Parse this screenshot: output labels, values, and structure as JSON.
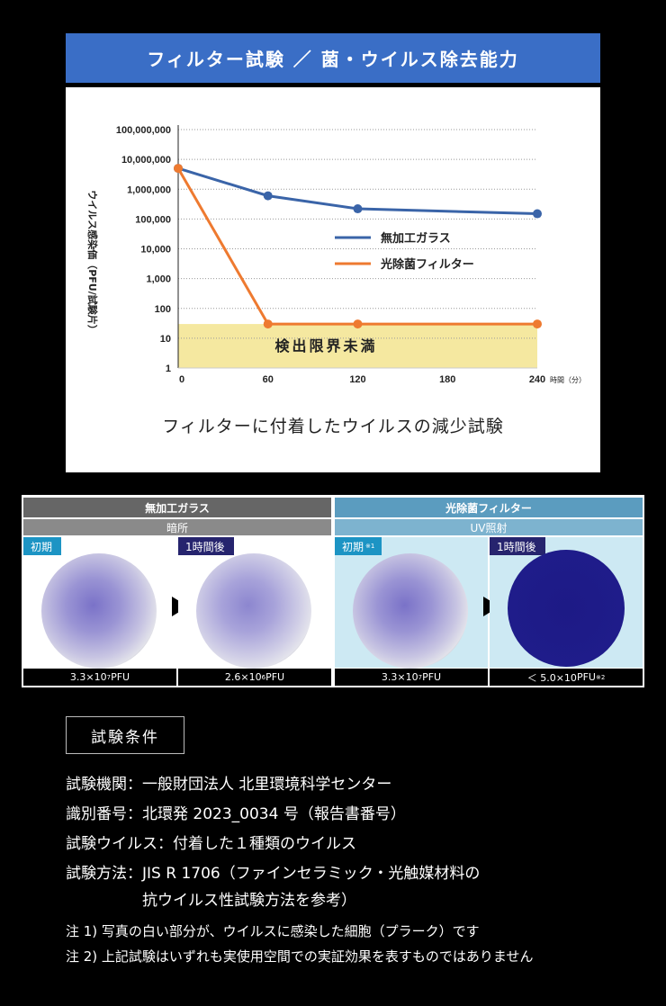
{
  "banner": {
    "title": "フィルター試験 ／ 菌・ウイルス除去能力"
  },
  "chart_data": {
    "type": "line",
    "title": "",
    "caption": "フィルターに付着したウイルスの減少試験",
    "ylabel": "ウイルス感染価（PFU/試験片）",
    "xlabel": "時間（分）",
    "yscale": "log",
    "ylim": [
      1,
      100000000
    ],
    "xlim": [
      0,
      240
    ],
    "ytick_labels": [
      "1",
      "10",
      "100",
      "1,000",
      "10,000",
      "100,000",
      "1,000,000",
      "10,000,000",
      "100,000,000"
    ],
    "xtick_labels": [
      "0",
      "60",
      "120",
      "180",
      "240"
    ],
    "x_unit_label": "時間（分）",
    "grid": "dotted-horizontal",
    "legend": "center-right",
    "series": [
      {
        "name": "無加工ガラス",
        "color": "#3a64a8",
        "x": [
          0,
          60,
          120,
          240
        ],
        "y": [
          5000000,
          600000,
          220000,
          150000
        ]
      },
      {
        "name": "光除菌フィルター",
        "color": "#ee7a30",
        "x": [
          0,
          60,
          120,
          240
        ],
        "y": [
          5000000,
          30,
          30,
          30
        ]
      }
    ],
    "annotation": {
      "label": "検出限界未満",
      "color": "#f5e8a0",
      "y_below": 30
    }
  },
  "photos": {
    "left": {
      "title": "無加工ガラス",
      "condition": "暗所",
      "header_color": "#666666",
      "sub_color": "#8a8a8a"
    },
    "right": {
      "title": "光除菌フィルター",
      "condition": "UV照射",
      "header_color": "#5b9cbf",
      "sub_color": "#7db3cf"
    },
    "cells": [
      {
        "tag": "初期",
        "tag_note": "",
        "tag_color": "#1c94c4",
        "pfu_base": "3.3×10",
        "pfu_exp": "7",
        "pfu_unit": " PFU",
        "pfu_note": ""
      },
      {
        "tag": "1時間後",
        "tag_note": "",
        "tag_color": "#26246e",
        "pfu_base": "2.6×10",
        "pfu_exp": "6",
        "pfu_unit": " PFU",
        "pfu_note": ""
      },
      {
        "tag": "初期",
        "tag_note": "※1",
        "tag_color": "#1c94c4",
        "pfu_base": "3.3×10",
        "pfu_exp": "7",
        "pfu_unit": " PFU",
        "pfu_note": ""
      },
      {
        "tag": "1時間後",
        "tag_note": "",
        "tag_color": "#26246e",
        "pfu_base": "＜ 5.0×10",
        "pfu_exp": "",
        "pfu_unit": " PFU ",
        "pfu_note": "※2"
      }
    ]
  },
  "conditions": {
    "heading": "試験条件",
    "lines": [
      "試験機関：一般財団法人 北里環境科学センター",
      "識別番号：北環発 2023_0034 号（報告書番号）",
      "試験ウイルス：付着した１種類のウイルス",
      "試験方法：JIS R 1706（ファインセラミック・光触媒材料の",
      "　　　　　抗ウイルス性試験方法を参考）"
    ],
    "notes": [
      "注 1) 写真の白い部分が、ウイルスに感染した細胞（プラーク）です",
      "注 2) 上記試験はいずれも実使用空間での実証効果を表すものではありません"
    ]
  }
}
